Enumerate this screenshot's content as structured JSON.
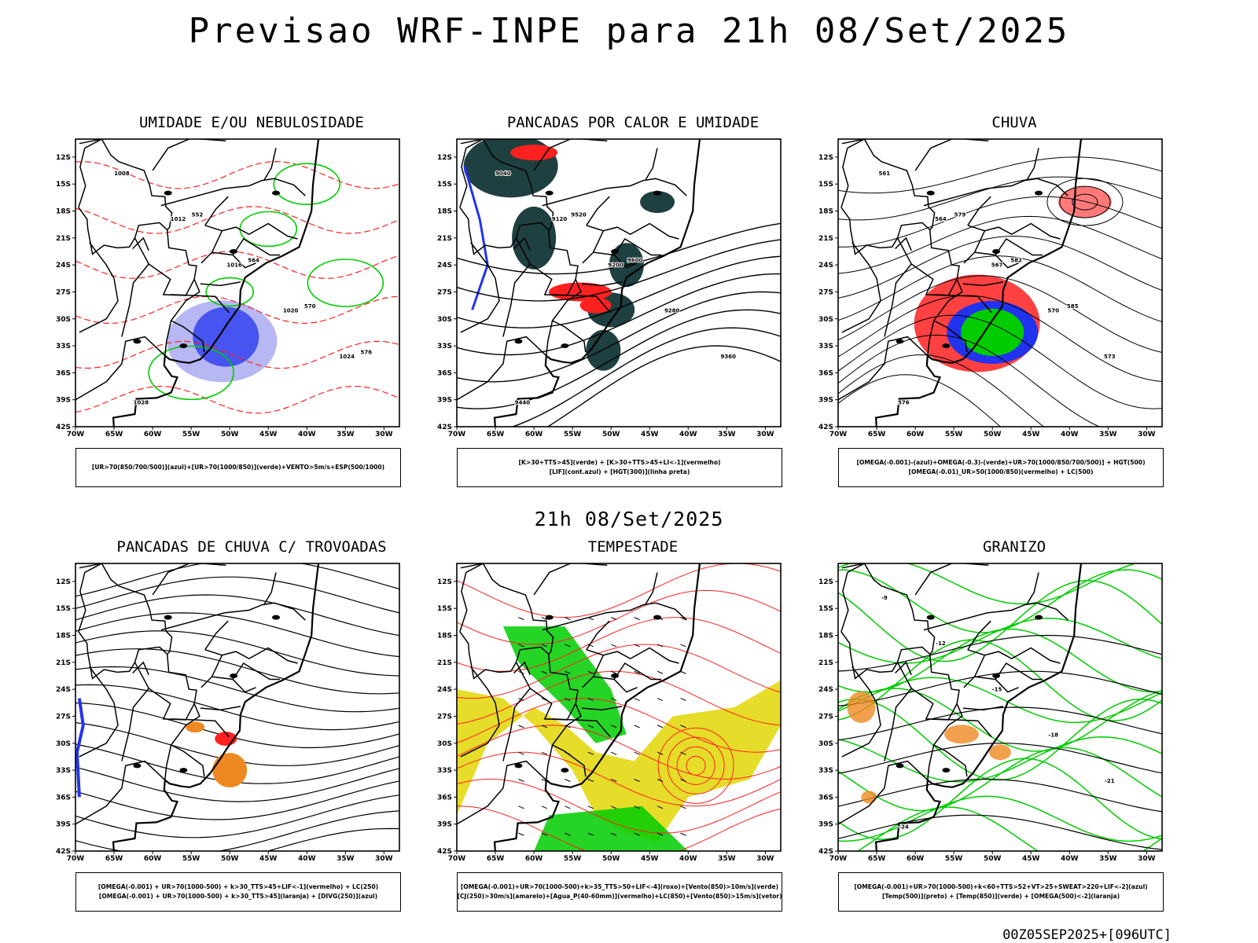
{
  "header": {
    "title": "Previsao WRF-INPE  para 21h 08/Set/2025",
    "subtitle": "21h 08/Set/2025",
    "run_info": "00Z05SEP2025+[096UTC]"
  },
  "axes": {
    "lat_labels": [
      "12S",
      "15S",
      "18S",
      "21S",
      "24S",
      "27S",
      "30S",
      "33S",
      "36S",
      "39S",
      "42S"
    ],
    "lon_labels": [
      "70W",
      "65W",
      "60W",
      "55W",
      "50W",
      "45W",
      "40W",
      "35W",
      "30W"
    ],
    "lat_range": [
      -42,
      -10
    ],
    "lon_range": [
      -70,
      -28
    ]
  },
  "panels": [
    {
      "title": "UMIDADE E/OU NEBULOSIDADE",
      "legend": [
        "[UR>70(850/700/500)](azul)+[UR>70(1000/850)](verde)+VENTO>5m/s+ESP(500/1000)"
      ],
      "contour_labels": [
        "1008",
        "1012",
        "1016",
        "1020",
        "1024",
        "1028",
        "552",
        "564",
        "570",
        "576"
      ]
    },
    {
      "title": "PANCADAS POR CALOR E UMIDADE",
      "legend": [
        "[K>30+TTS>45](verde) + [K>30+TTS>45+LI<-1](vermelho)",
        "[LIF](cont.azul) + [HGT(300)](linha preta)"
      ],
      "contour_labels": [
        "9040",
        "9120",
        "9200",
        "9280",
        "9360",
        "9440",
        "9520",
        "9600"
      ]
    },
    {
      "title": "CHUVA",
      "legend": [
        "[OMEGA(-0.001)-(azul)+OMEGA(-0.3)-(verde)+UR>70(1000/850/700/500)] + HGT(500)",
        "[OMEGA(-0.01)_UR>50(1000/850)(vermelho) + LC(500)"
      ],
      "contour_labels": [
        "561",
        "564",
        "567",
        "570",
        "573",
        "576",
        "579",
        "582",
        "585"
      ]
    },
    {
      "title": "PANCADAS DE CHUVA C/ TROVOADAS",
      "legend": [
        "[OMEGA(-0.001) + UR>70(1000-500) + k>30_TTS>45+LIF<-1](vermelho) + LC(250)",
        "[OMEGA(-0.001) + UR>70(1000-500) + k>30_TTS>45](laranja) + [DIVG(250)](azul)"
      ],
      "contour_labels": []
    },
    {
      "title": "TEMPESTADE",
      "legend": [
        "[OMEGA(-0.001)+UR>70(1000-500)+k>35_TTS>50+LIF<-4](roxo)+[Vento(850)>10m/s](verde)",
        "[CJ(250)>30m/s](amarelo)+[Agua_P(40-60mm)](vermelho)+LC(850)+[Vento(850)>15m/s](vetor)"
      ],
      "contour_labels": []
    },
    {
      "title": "GRANIZO",
      "legend": [
        "[OMEGA(-0.001)+UR>70(1000-500)+k<60+TTS>52+VT>25+SWEAT>220+LIF<-2](azul)",
        "[Temp(500)](preto) + [Temp(850)](verde) + [OMEGA(500)<-2](laranja)"
      ],
      "contour_labels": [
        "-9",
        "-12",
        "-15",
        "-18",
        "-21",
        "-24"
      ]
    }
  ],
  "colors": {
    "black": "#000000",
    "red": "#ff2020",
    "green": "#00cc00",
    "blue": "#2233ee",
    "light_blue": "#9999ee",
    "dark_teal": "#1f4040",
    "orange": "#ee8820",
    "yellow": "#e6dc2a"
  }
}
